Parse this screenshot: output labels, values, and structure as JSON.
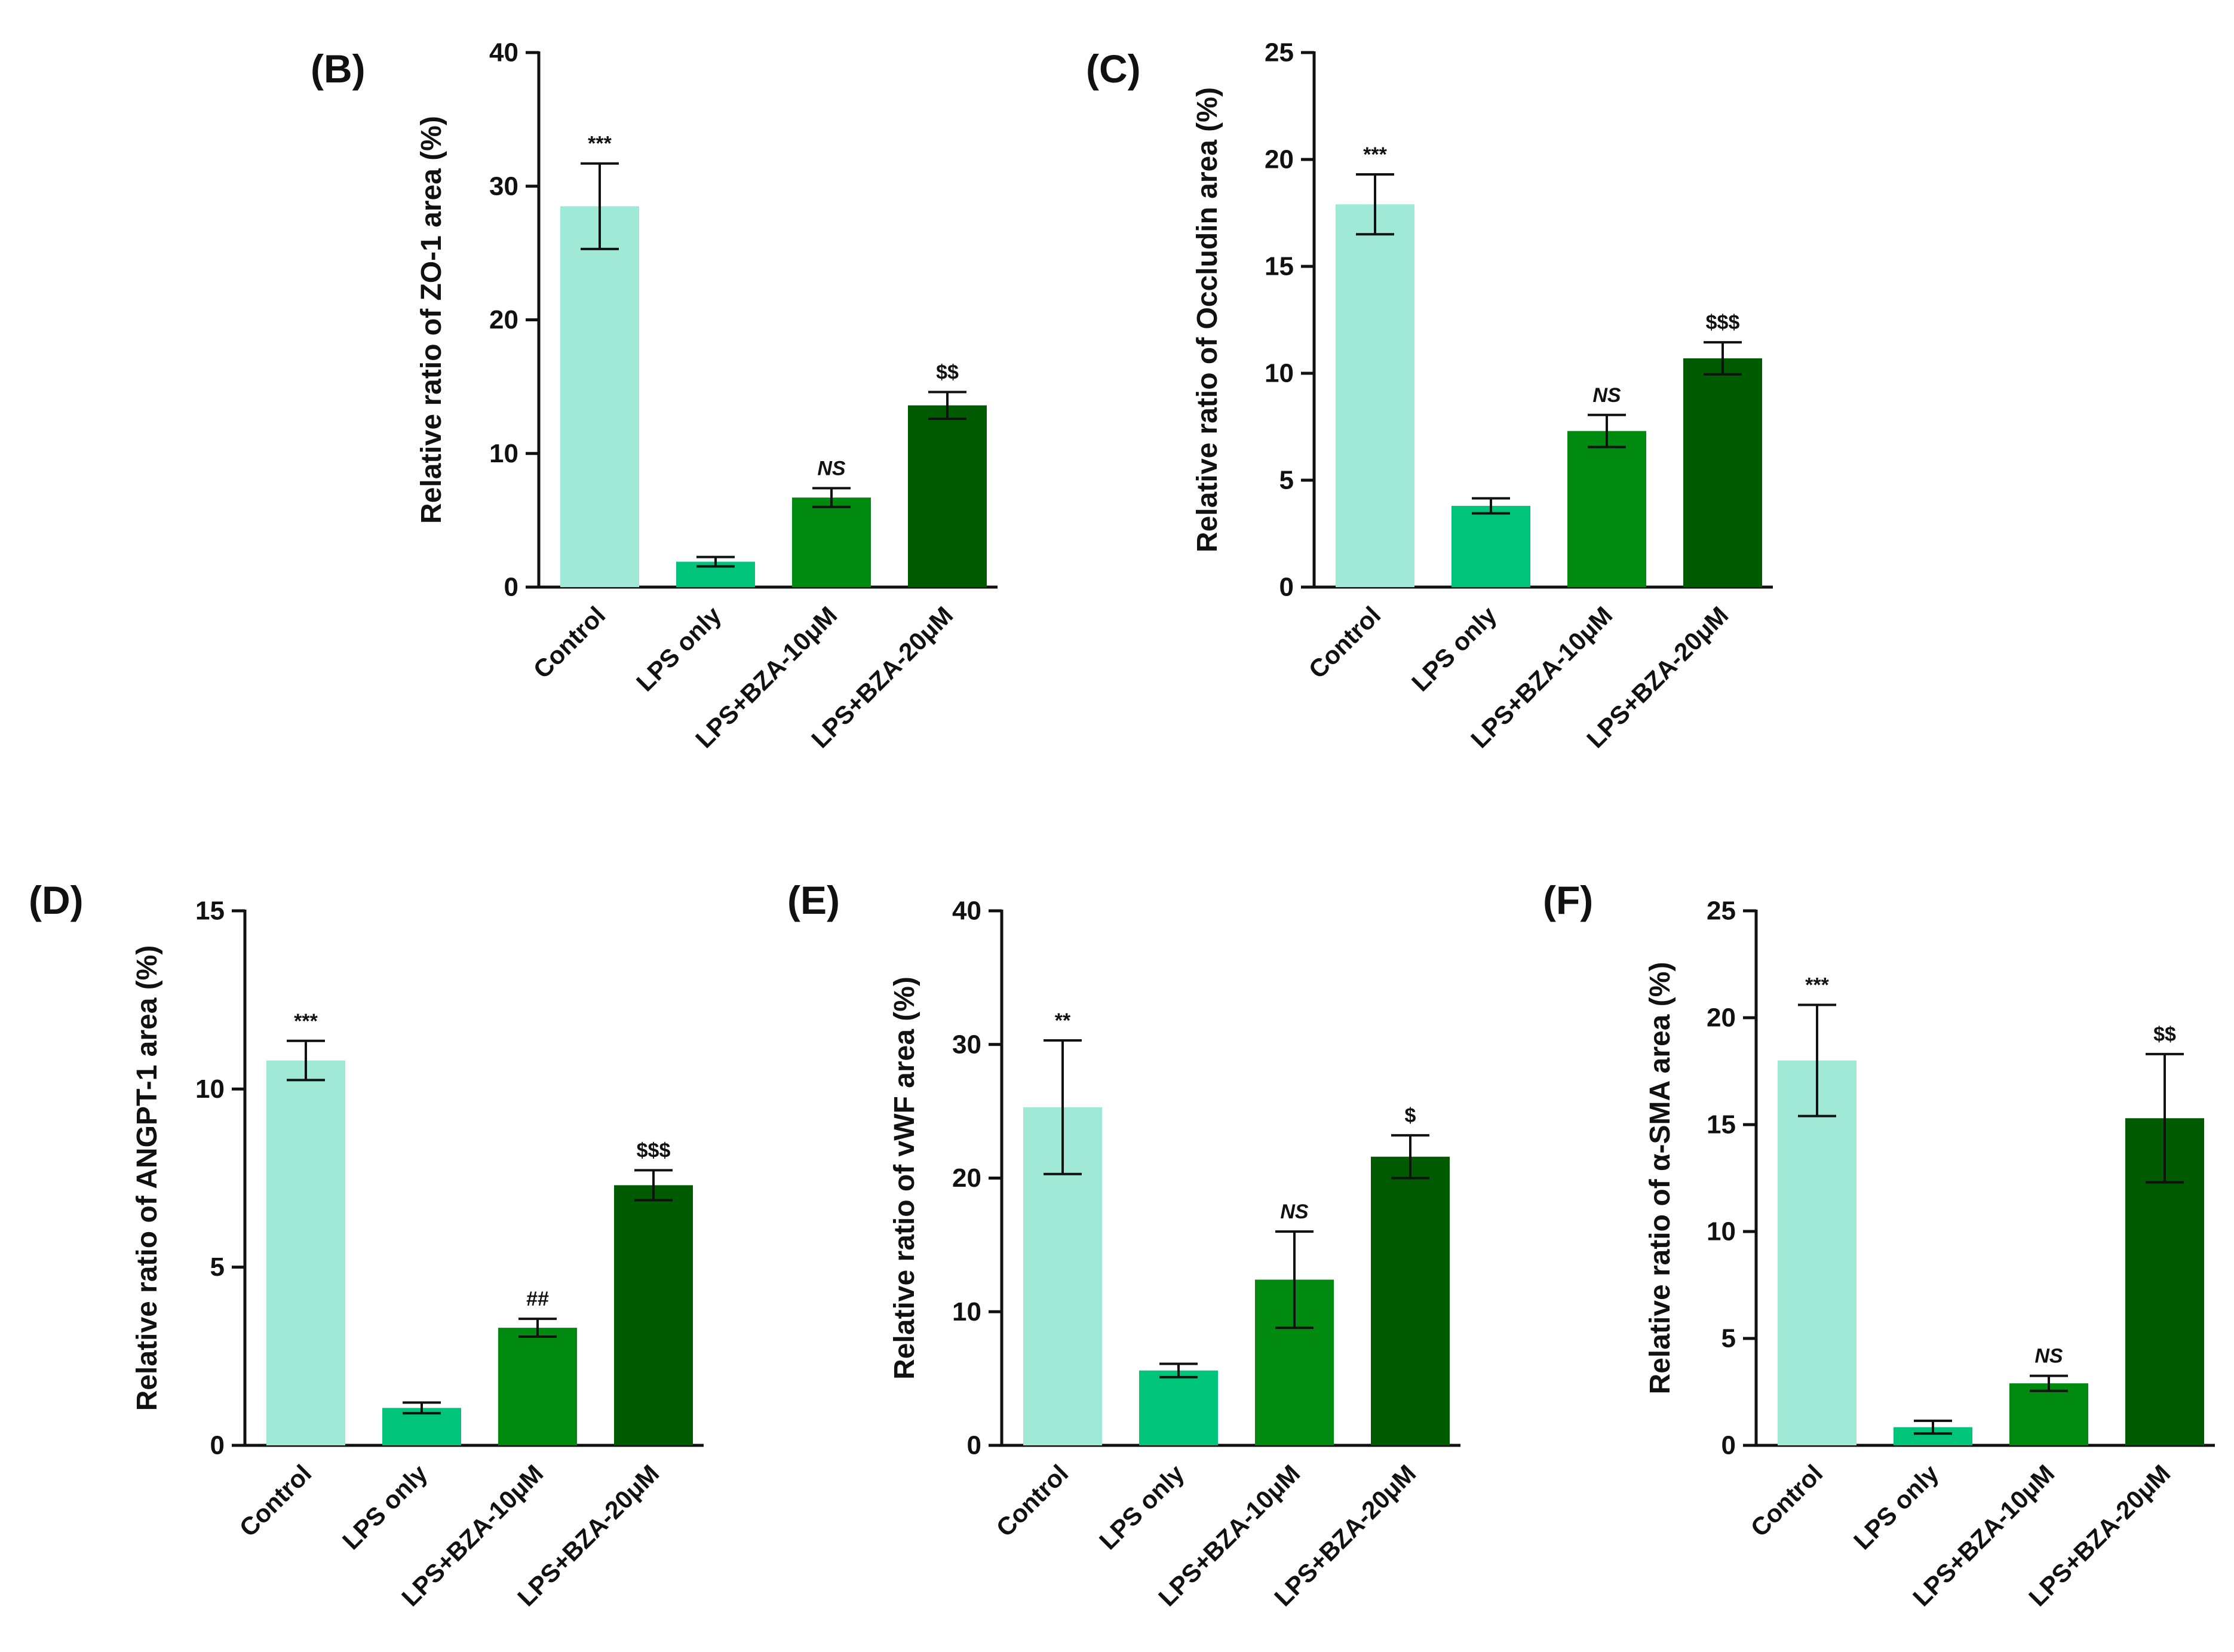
{
  "figure": {
    "bar_colors": [
      "#a0e9d6",
      "#00c47a",
      "#008a0f",
      "#005a00"
    ]
  },
  "chart_data": [
    {
      "type": "bar",
      "panel": "(B)",
      "ylabel": "Relative ratio of ZO-1 area (%)",
      "categories": [
        "Control",
        "LPS only",
        "LPS+BZA-10μM",
        "LPS+BZA-20μM"
      ],
      "values": [
        28.5,
        1.9,
        6.7,
        13.6
      ],
      "errors": [
        3.2,
        0.35,
        0.7,
        1.0
      ],
      "significance": [
        "***",
        "",
        "NS",
        "$$"
      ],
      "yticks": [
        "0",
        "10",
        "20",
        "30",
        "40"
      ],
      "ylim": [
        0,
        40
      ]
    },
    {
      "type": "bar",
      "panel": "(C)",
      "ylabel": "Relative ratio of Occludin area (%)",
      "categories": [
        "Control",
        "LPS only",
        "LPS+BZA-10μM",
        "LPS+BZA-20μM"
      ],
      "values": [
        17.9,
        3.8,
        7.3,
        10.7
      ],
      "errors": [
        1.4,
        0.35,
        0.75,
        0.75
      ],
      "significance": [
        "***",
        "",
        "NS",
        "$$$"
      ],
      "yticks": [
        "0",
        "5",
        "10",
        "15",
        "20",
        "25"
      ],
      "ylim": [
        0,
        25
      ]
    },
    {
      "type": "bar",
      "panel": "(D)",
      "ylabel": "Relative ratio of ANGPT-1 area (%)",
      "categories": [
        "Control",
        "LPS only",
        "LPS+BZA-10μM",
        "LPS+BZA-20μM"
      ],
      "values": [
        10.8,
        1.05,
        3.3,
        7.3
      ],
      "errors": [
        0.55,
        0.15,
        0.25,
        0.42
      ],
      "significance": [
        "***",
        "",
        "##",
        "$$$"
      ],
      "yticks": [
        "0",
        "5",
        "10",
        "15"
      ],
      "ylim": [
        0,
        15
      ]
    },
    {
      "type": "bar",
      "panel": "(E)",
      "ylabel": "Relative ratio of vWF area (%)",
      "categories": [
        "Control",
        "LPS only",
        "LPS+BZA-10μM",
        "LPS+BZA-20μM"
      ],
      "values": [
        25.3,
        5.6,
        12.4,
        21.6
      ],
      "errors": [
        5.0,
        0.5,
        3.6,
        1.6
      ],
      "significance": [
        "**",
        "",
        "NS",
        "$"
      ],
      "yticks": [
        "0",
        "10",
        "20",
        "30",
        "40"
      ],
      "ylim": [
        0,
        40
      ]
    },
    {
      "type": "bar",
      "panel": "(F)",
      "ylabel": "Relative ratio of α-SMA area (%)",
      "categories": [
        "Control",
        "LPS only",
        "LPS+BZA-10μM",
        "LPS+BZA-20μM"
      ],
      "values": [
        18.0,
        0.85,
        2.9,
        15.3
      ],
      "errors": [
        2.6,
        0.3,
        0.35,
        3.0
      ],
      "significance": [
        "***",
        "",
        "NS",
        "$$"
      ],
      "yticks": [
        "0",
        "5",
        "10",
        "15",
        "20",
        "25"
      ],
      "ylim": [
        0,
        25
      ]
    }
  ]
}
